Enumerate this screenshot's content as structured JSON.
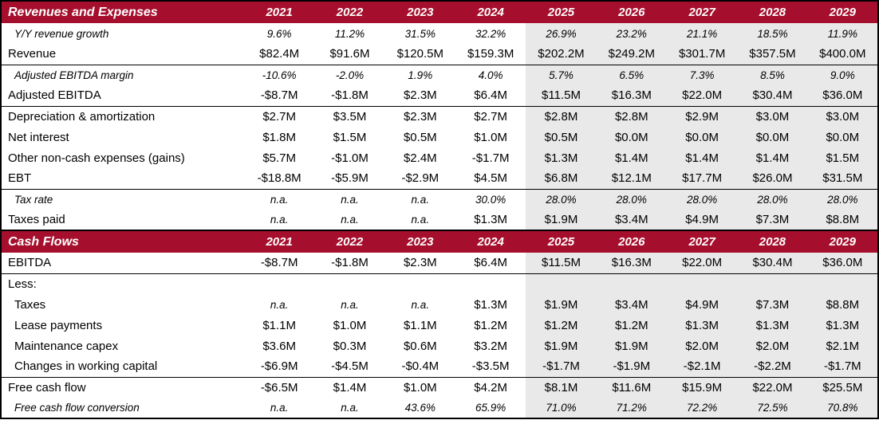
{
  "colors": {
    "header_bg": "#A50F2D",
    "header_text": "#FFFFFF",
    "forecast_bg": "#E9E9E9",
    "border": "#000000"
  },
  "forecast_start_index": 4,
  "chart_data": [
    {
      "type": "table",
      "title": "Revenues and Expenses",
      "columns": [
        "2021",
        "2022",
        "2023",
        "2024",
        "2025",
        "2026",
        "2027",
        "2028",
        "2029"
      ],
      "rows": [
        {
          "label": "Y/Y revenue growth",
          "italic": true,
          "indent": true,
          "values": [
            "9.6%",
            "11.2%",
            "31.5%",
            "32.2%",
            "26.9%",
            "23.2%",
            "21.1%",
            "18.5%",
            "11.9%"
          ]
        },
        {
          "label": "Revenue",
          "rule_below": true,
          "values": [
            "$82.4M",
            "$91.6M",
            "$120.5M",
            "$159.3M",
            "$202.2M",
            "$249.2M",
            "$301.7M",
            "$357.5M",
            "$400.0M"
          ]
        },
        {
          "label": "Adjusted EBITDA margin",
          "italic": true,
          "indent": true,
          "values": [
            "-10.6%",
            "-2.0%",
            "1.9%",
            "4.0%",
            "5.7%",
            "6.5%",
            "7.3%",
            "8.5%",
            "9.0%"
          ]
        },
        {
          "label": "Adjusted EBITDA",
          "rule_below": true,
          "values": [
            "-$8.7M",
            "-$1.8M",
            "$2.3M",
            "$6.4M",
            "$11.5M",
            "$16.3M",
            "$22.0M",
            "$30.4M",
            "$36.0M"
          ]
        },
        {
          "label": "Depreciation & amortization",
          "values": [
            "$2.7M",
            "$3.5M",
            "$2.3M",
            "$2.7M",
            "$2.8M",
            "$2.8M",
            "$2.9M",
            "$3.0M",
            "$3.0M"
          ]
        },
        {
          "label": "Net interest",
          "values": [
            "$1.8M",
            "$1.5M",
            "$0.5M",
            "$1.0M",
            "$0.5M",
            "$0.0M",
            "$0.0M",
            "$0.0M",
            "$0.0M"
          ]
        },
        {
          "label": "Other non-cash expenses (gains)",
          "values": [
            "$5.7M",
            "-$1.0M",
            "$2.4M",
            "-$1.7M",
            "$1.3M",
            "$1.4M",
            "$1.4M",
            "$1.4M",
            "$1.5M"
          ]
        },
        {
          "label": "EBT",
          "rule_below": true,
          "values": [
            "-$18.8M",
            "-$5.9M",
            "-$2.9M",
            "$4.5M",
            "$6.8M",
            "$12.1M",
            "$17.7M",
            "$26.0M",
            "$31.5M"
          ]
        },
        {
          "label": "Tax rate",
          "italic": true,
          "indent": true,
          "values": [
            "n.a.",
            "n.a.",
            "n.a.",
            "30.0%",
            "28.0%",
            "28.0%",
            "28.0%",
            "28.0%",
            "28.0%"
          ]
        },
        {
          "label": "Taxes paid",
          "values": [
            "n.a.",
            "n.a.",
            "n.a.",
            "$1.3M",
            "$1.9M",
            "$3.4M",
            "$4.9M",
            "$7.3M",
            "$8.8M"
          ]
        }
      ]
    },
    {
      "type": "table",
      "title": "Cash Flows",
      "columns": [
        "2021",
        "2022",
        "2023",
        "2024",
        "2025",
        "2026",
        "2027",
        "2028",
        "2029"
      ],
      "rows": [
        {
          "label": "EBITDA",
          "rule_below": true,
          "values": [
            "-$8.7M",
            "-$1.8M",
            "$2.3M",
            "$6.4M",
            "$11.5M",
            "$16.3M",
            "$22.0M",
            "$30.4M",
            "$36.0M"
          ]
        },
        {
          "label": "Less:",
          "values": [
            "",
            "",
            "",
            "",
            "",
            "",
            "",
            "",
            ""
          ]
        },
        {
          "label": "Taxes",
          "indent": true,
          "values": [
            "n.a.",
            "n.a.",
            "n.a.",
            "$1.3M",
            "$1.9M",
            "$3.4M",
            "$4.9M",
            "$7.3M",
            "$8.8M"
          ]
        },
        {
          "label": "Lease payments",
          "indent": true,
          "values": [
            "$1.1M",
            "$1.0M",
            "$1.1M",
            "$1.2M",
            "$1.2M",
            "$1.2M",
            "$1.3M",
            "$1.3M",
            "$1.3M"
          ]
        },
        {
          "label": "Maintenance capex",
          "indent": true,
          "values": [
            "$3.6M",
            "$0.3M",
            "$0.6M",
            "$3.2M",
            "$1.9M",
            "$1.9M",
            "$2.0M",
            "$2.0M",
            "$2.1M"
          ]
        },
        {
          "label": "Changes in working capital",
          "indent": true,
          "rule_below": true,
          "values": [
            "-$6.9M",
            "-$4.5M",
            "-$0.4M",
            "-$3.5M",
            "-$1.7M",
            "-$1.9M",
            "-$2.1M",
            "-$2.2M",
            "-$1.7M"
          ]
        },
        {
          "label": "Free cash flow",
          "values": [
            "-$6.5M",
            "$1.4M",
            "$1.0M",
            "$4.2M",
            "$8.1M",
            "$11.6M",
            "$15.9M",
            "$22.0M",
            "$25.5M"
          ]
        },
        {
          "label": "Free cash flow conversion",
          "italic": true,
          "indent": true,
          "values": [
            "n.a.",
            "n.a.",
            "43.6%",
            "65.9%",
            "71.0%",
            "71.2%",
            "72.2%",
            "72.5%",
            "70.8%"
          ]
        }
      ]
    }
  ]
}
